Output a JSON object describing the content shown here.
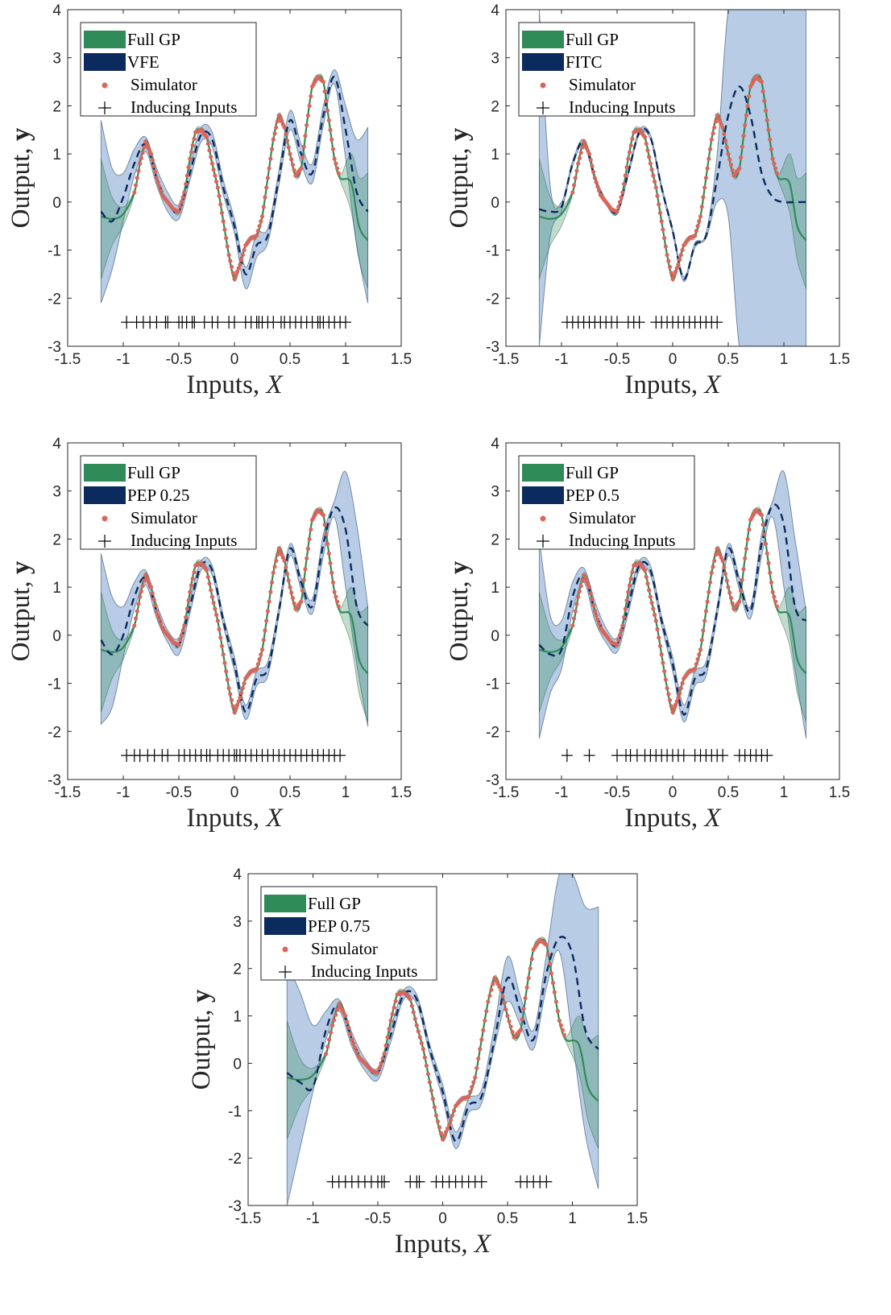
{
  "colors": {
    "full_gp": "#2e8b57",
    "full_gp_band": "#2e8b57",
    "approx_band": "#7da3d1",
    "approx_mean": "#0b2a5e",
    "simulator": "#d9665a",
    "inducing": "#000000",
    "axes": "#262626"
  },
  "legend_common": {
    "full_gp": "Full GP",
    "simulator": "Simulator",
    "inducing": "Inducing Inputs"
  },
  "axis_text": {
    "xlabel_main": "Inputs, ",
    "xlabel_var": "X",
    "ylabel_main": "Output, ",
    "ylabel_var": "y"
  },
  "chart_data": [
    {
      "type": "line",
      "method": "VFE",
      "xlim": [
        -1.5,
        1.5
      ],
      "ylim": [
        -3,
        4
      ],
      "xticks": [
        "-1.5",
        "-1",
        "-0.5",
        "0",
        "0.5",
        "1",
        "1.5"
      ],
      "yticks": [
        "-3",
        "-2",
        "-1",
        "0",
        "1",
        "2",
        "3",
        "4"
      ],
      "legend": [
        "Full GP",
        "VFE",
        "Simulator",
        "Inducing Inputs"
      ],
      "inducing_x": [
        -0.97,
        -0.88,
        -0.82,
        -0.76,
        -0.7,
        -0.62,
        -0.6,
        -0.5,
        -0.47,
        -0.43,
        -0.38,
        -0.36,
        -0.27,
        -0.2,
        -0.15,
        -0.05,
        0.0,
        0.1,
        0.15,
        0.2,
        0.22,
        0.25,
        0.3,
        0.35,
        0.42,
        0.45,
        0.5,
        0.55,
        0.6,
        0.65,
        0.7,
        0.75,
        0.77,
        0.8,
        0.85,
        0.9,
        0.95,
        1.0
      ],
      "mean_x": [
        -1.2,
        -1.1,
        -1.0,
        -0.9,
        -0.8,
        -0.7,
        -0.6,
        -0.5,
        -0.4,
        -0.3,
        -0.2,
        -0.1,
        0.0,
        0.1,
        0.2,
        0.3,
        0.4,
        0.5,
        0.6,
        0.7,
        0.8,
        0.9,
        1.0,
        1.1,
        1.2
      ],
      "mean_y": [
        -0.2,
        -0.4,
        0.1,
        0.8,
        1.2,
        0.5,
        0.0,
        -0.2,
        0.6,
        1.4,
        1.3,
        0.3,
        -0.5,
        -1.5,
        -0.9,
        -0.7,
        0.5,
        1.7,
        1.0,
        0.6,
        1.8,
        2.6,
        1.5,
        0.2,
        -0.2
      ],
      "band_upper": [
        1.7,
        0.7,
        0.6,
        1.1,
        1.35,
        0.7,
        0.2,
        -0.05,
        0.75,
        1.55,
        1.45,
        0.45,
        -0.35,
        -1.35,
        -0.65,
        -0.55,
        0.65,
        1.9,
        1.2,
        0.8,
        2.0,
        2.75,
        2.0,
        1.3,
        1.55
      ],
      "band_lower": [
        -2.1,
        -1.4,
        -0.4,
        0.55,
        1.05,
        0.35,
        -0.2,
        -0.35,
        0.45,
        1.25,
        1.15,
        0.15,
        -0.65,
        -1.8,
        -1.15,
        -0.85,
        0.35,
        1.5,
        0.8,
        0.4,
        1.6,
        2.45,
        0.9,
        -0.9,
        -2.1
      ]
    },
    {
      "type": "line",
      "method": "FITC",
      "xlim": [
        -1.5,
        1.5
      ],
      "ylim": [
        -3,
        4
      ],
      "xticks": [
        "-1.5",
        "-1",
        "-0.5",
        "0",
        "0.5",
        "1",
        "1.5"
      ],
      "yticks": [
        "-3",
        "-2",
        "-1",
        "0",
        "1",
        "2",
        "3",
        "4"
      ],
      "legend": [
        "Full GP",
        "FITC",
        "Simulator",
        "Inducing Inputs"
      ],
      "inducing_x": [
        -0.95,
        -0.9,
        -0.85,
        -0.8,
        -0.75,
        -0.7,
        -0.65,
        -0.6,
        -0.55,
        -0.5,
        -0.4,
        -0.35,
        -0.3,
        -0.15,
        -0.1,
        -0.05,
        0.0,
        0.05,
        0.1,
        0.15,
        0.2,
        0.25,
        0.3,
        0.35,
        0.4
      ],
      "mean_x": [
        -1.2,
        -1.1,
        -1.0,
        -0.9,
        -0.8,
        -0.7,
        -0.6,
        -0.5,
        -0.4,
        -0.3,
        -0.2,
        -0.1,
        0.0,
        0.1,
        0.2,
        0.3,
        0.4,
        0.5,
        0.6,
        0.7,
        0.8,
        0.9,
        1.0,
        1.1,
        1.2
      ],
      "mean_y": [
        -0.15,
        -0.2,
        -0.1,
        0.8,
        1.25,
        0.5,
        0.0,
        -0.2,
        0.6,
        1.45,
        1.35,
        0.3,
        -0.6,
        -1.6,
        -0.9,
        -0.7,
        0.5,
        1.8,
        2.4,
        1.8,
        0.6,
        0.1,
        0.0,
        0.0,
        0.0
      ],
      "band_upper": [
        4.0,
        0.3,
        0.0,
        0.85,
        1.3,
        0.55,
        0.05,
        -0.15,
        0.65,
        1.5,
        1.4,
        0.35,
        -0.55,
        -1.55,
        -0.85,
        -0.65,
        1.0,
        4.0,
        4.0,
        4.0,
        4.0,
        4.0,
        4.0,
        4.0,
        4.0
      ],
      "band_lower": [
        -3.0,
        -0.7,
        -0.2,
        0.75,
        1.2,
        0.45,
        -0.05,
        -0.25,
        0.55,
        1.4,
        1.3,
        0.25,
        -0.65,
        -1.65,
        -0.95,
        -0.75,
        0.0,
        -0.3,
        -3.0,
        -3.0,
        -3.0,
        -3.0,
        -3.0,
        -3.0,
        -3.0
      ]
    },
    {
      "type": "line",
      "method": "PEP 0.25",
      "xlim": [
        -1.5,
        1.5
      ],
      "ylim": [
        -3,
        4
      ],
      "xticks": [
        "-1.5",
        "-1",
        "-0.5",
        "0",
        "0.5",
        "1",
        "1.5"
      ],
      "yticks": [
        "-3",
        "-2",
        "-1",
        "0",
        "1",
        "2",
        "3",
        "4"
      ],
      "legend": [
        "Full GP",
        "PEP 0.25",
        "Simulator",
        "Inducing Inputs"
      ],
      "inducing_x": [
        -0.97,
        -0.9,
        -0.85,
        -0.78,
        -0.72,
        -0.65,
        -0.6,
        -0.5,
        -0.45,
        -0.4,
        -0.35,
        -0.3,
        -0.25,
        -0.22,
        -0.15,
        -0.1,
        -0.05,
        0.0,
        0.02,
        0.05,
        0.1,
        0.15,
        0.2,
        0.25,
        0.3,
        0.35,
        0.4,
        0.45,
        0.5,
        0.55,
        0.6,
        0.65,
        0.7,
        0.75,
        0.8,
        0.85,
        0.9,
        0.95
      ],
      "mean_x": [
        -1.2,
        -1.1,
        -1.0,
        -0.9,
        -0.8,
        -0.7,
        -0.6,
        -0.5,
        -0.4,
        -0.3,
        -0.2,
        -0.1,
        0.0,
        0.1,
        0.2,
        0.3,
        0.4,
        0.5,
        0.6,
        0.7,
        0.8,
        0.9,
        1.0,
        1.1,
        1.2
      ],
      "mean_y": [
        -0.1,
        -0.4,
        0.0,
        0.8,
        1.2,
        0.5,
        0.0,
        -0.2,
        0.6,
        1.45,
        1.35,
        0.3,
        -0.6,
        -1.6,
        -0.9,
        -0.7,
        0.5,
        1.8,
        1.1,
        0.6,
        1.9,
        2.65,
        2.2,
        0.6,
        0.2
      ],
      "band_upper": [
        1.7,
        0.8,
        0.6,
        1.1,
        1.35,
        0.65,
        0.1,
        -0.05,
        0.75,
        1.55,
        1.45,
        0.4,
        -0.45,
        -1.45,
        -0.75,
        -0.55,
        0.6,
        1.9,
        1.2,
        0.75,
        2.1,
        2.8,
        3.4,
        2.3,
        0.6
      ],
      "band_lower": [
        -1.85,
        -1.5,
        -0.45,
        0.55,
        1.05,
        0.35,
        -0.15,
        -0.4,
        0.45,
        1.35,
        1.25,
        0.2,
        -0.75,
        -1.75,
        -1.05,
        -0.85,
        0.4,
        1.65,
        0.95,
        0.45,
        1.65,
        2.45,
        1.0,
        -0.6,
        -1.9
      ]
    },
    {
      "type": "line",
      "method": "PEP 0.5",
      "xlim": [
        -1.5,
        1.5
      ],
      "ylim": [
        -3,
        4
      ],
      "xticks": [
        "-1.5",
        "-1",
        "-0.5",
        "0",
        "0.5",
        "1",
        "1.5"
      ],
      "yticks": [
        "-3",
        "-2",
        "-1",
        "0",
        "1",
        "2",
        "3",
        "4"
      ],
      "legend": [
        "Full GP",
        "PEP 0.5",
        "Simulator",
        "Inducing Inputs"
      ],
      "inducing_x": [
        -0.95,
        -0.75,
        -0.5,
        -0.42,
        -0.38,
        -0.32,
        -0.25,
        -0.2,
        -0.15,
        -0.1,
        -0.05,
        0.0,
        0.05,
        0.1,
        0.2,
        0.25,
        0.3,
        0.35,
        0.4,
        0.45,
        0.6,
        0.65,
        0.7,
        0.75,
        0.8,
        0.85
      ],
      "mean_x": [
        -1.2,
        -1.1,
        -1.0,
        -0.9,
        -0.8,
        -0.7,
        -0.6,
        -0.5,
        -0.4,
        -0.3,
        -0.2,
        -0.1,
        0.0,
        0.1,
        0.2,
        0.3,
        0.4,
        0.5,
        0.6,
        0.7,
        0.8,
        0.9,
        1.0,
        1.1,
        1.2
      ],
      "mean_y": [
        -0.2,
        -0.4,
        -0.3,
        0.8,
        1.25,
        0.5,
        0.0,
        -0.2,
        0.6,
        1.45,
        1.35,
        0.3,
        -0.6,
        -1.65,
        -0.9,
        -0.7,
        0.5,
        1.8,
        1.1,
        0.5,
        1.9,
        2.7,
        2.3,
        0.6,
        0.3
      ],
      "band_upper": [
        2.0,
        0.4,
        0.3,
        1.1,
        1.4,
        0.7,
        0.15,
        -0.05,
        0.75,
        1.55,
        1.45,
        0.4,
        -0.45,
        -1.45,
        -0.75,
        -0.55,
        0.6,
        1.9,
        1.2,
        0.6,
        2.1,
        2.8,
        3.4,
        2.0,
        0.5
      ],
      "band_lower": [
        -2.15,
        -1.2,
        -0.7,
        0.5,
        1.1,
        0.3,
        -0.15,
        -0.35,
        0.45,
        1.35,
        1.25,
        0.2,
        -0.75,
        -1.8,
        -1.05,
        -0.85,
        0.4,
        1.65,
        0.95,
        0.35,
        1.65,
        2.45,
        1.0,
        -0.7,
        -2.15
      ]
    },
    {
      "type": "line",
      "method": "PEP 0.75",
      "xlim": [
        -1.5,
        1.5
      ],
      "ylim": [
        -3,
        4
      ],
      "xticks": [
        "-1.5",
        "-1",
        "-0.5",
        "0",
        "0.5",
        "1",
        "1.5"
      ],
      "yticks": [
        "-3",
        "-2",
        "-1",
        "0",
        "1",
        "2",
        "3",
        "4"
      ],
      "legend": [
        "Full GP",
        "PEP 0.75",
        "Simulator",
        "Inducing Inputs"
      ],
      "inducing_x": [
        -0.85,
        -0.8,
        -0.75,
        -0.7,
        -0.65,
        -0.6,
        -0.55,
        -0.5,
        -0.47,
        -0.45,
        -0.25,
        -0.2,
        -0.18,
        -0.05,
        0.0,
        0.05,
        0.1,
        0.15,
        0.2,
        0.25,
        0.3,
        0.6,
        0.65,
        0.7,
        0.75,
        0.8
      ],
      "mean_x": [
        -1.2,
        -1.1,
        -1.0,
        -0.9,
        -0.8,
        -0.7,
        -0.6,
        -0.5,
        -0.4,
        -0.3,
        -0.2,
        -0.1,
        0.0,
        0.1,
        0.2,
        0.3,
        0.4,
        0.5,
        0.6,
        0.7,
        0.8,
        0.9,
        1.0,
        1.1,
        1.2
      ],
      "mean_y": [
        -0.2,
        -0.4,
        -0.5,
        0.7,
        1.25,
        0.5,
        0.0,
        -0.2,
        0.6,
        1.45,
        1.35,
        0.3,
        -0.6,
        -1.65,
        -0.9,
        -0.7,
        0.5,
        1.8,
        1.1,
        0.5,
        1.9,
        2.65,
        2.3,
        0.7,
        0.3
      ],
      "band_upper": [
        2.1,
        1.5,
        0.8,
        1.1,
        1.35,
        0.65,
        0.1,
        -0.1,
        0.75,
        1.55,
        1.45,
        0.4,
        -0.45,
        -1.45,
        -0.75,
        -0.55,
        0.8,
        2.25,
        1.4,
        0.7,
        2.3,
        4.0,
        4.0,
        3.3,
        3.3
      ],
      "band_lower": [
        -3.0,
        -1.8,
        -0.6,
        0.5,
        1.1,
        0.35,
        -0.15,
        -0.35,
        0.45,
        1.35,
        1.25,
        0.2,
        -0.75,
        -1.8,
        -1.05,
        -0.85,
        0.35,
        1.3,
        0.8,
        0.3,
        1.6,
        2.35,
        0.5,
        -1.5,
        -2.65
      ]
    }
  ]
}
